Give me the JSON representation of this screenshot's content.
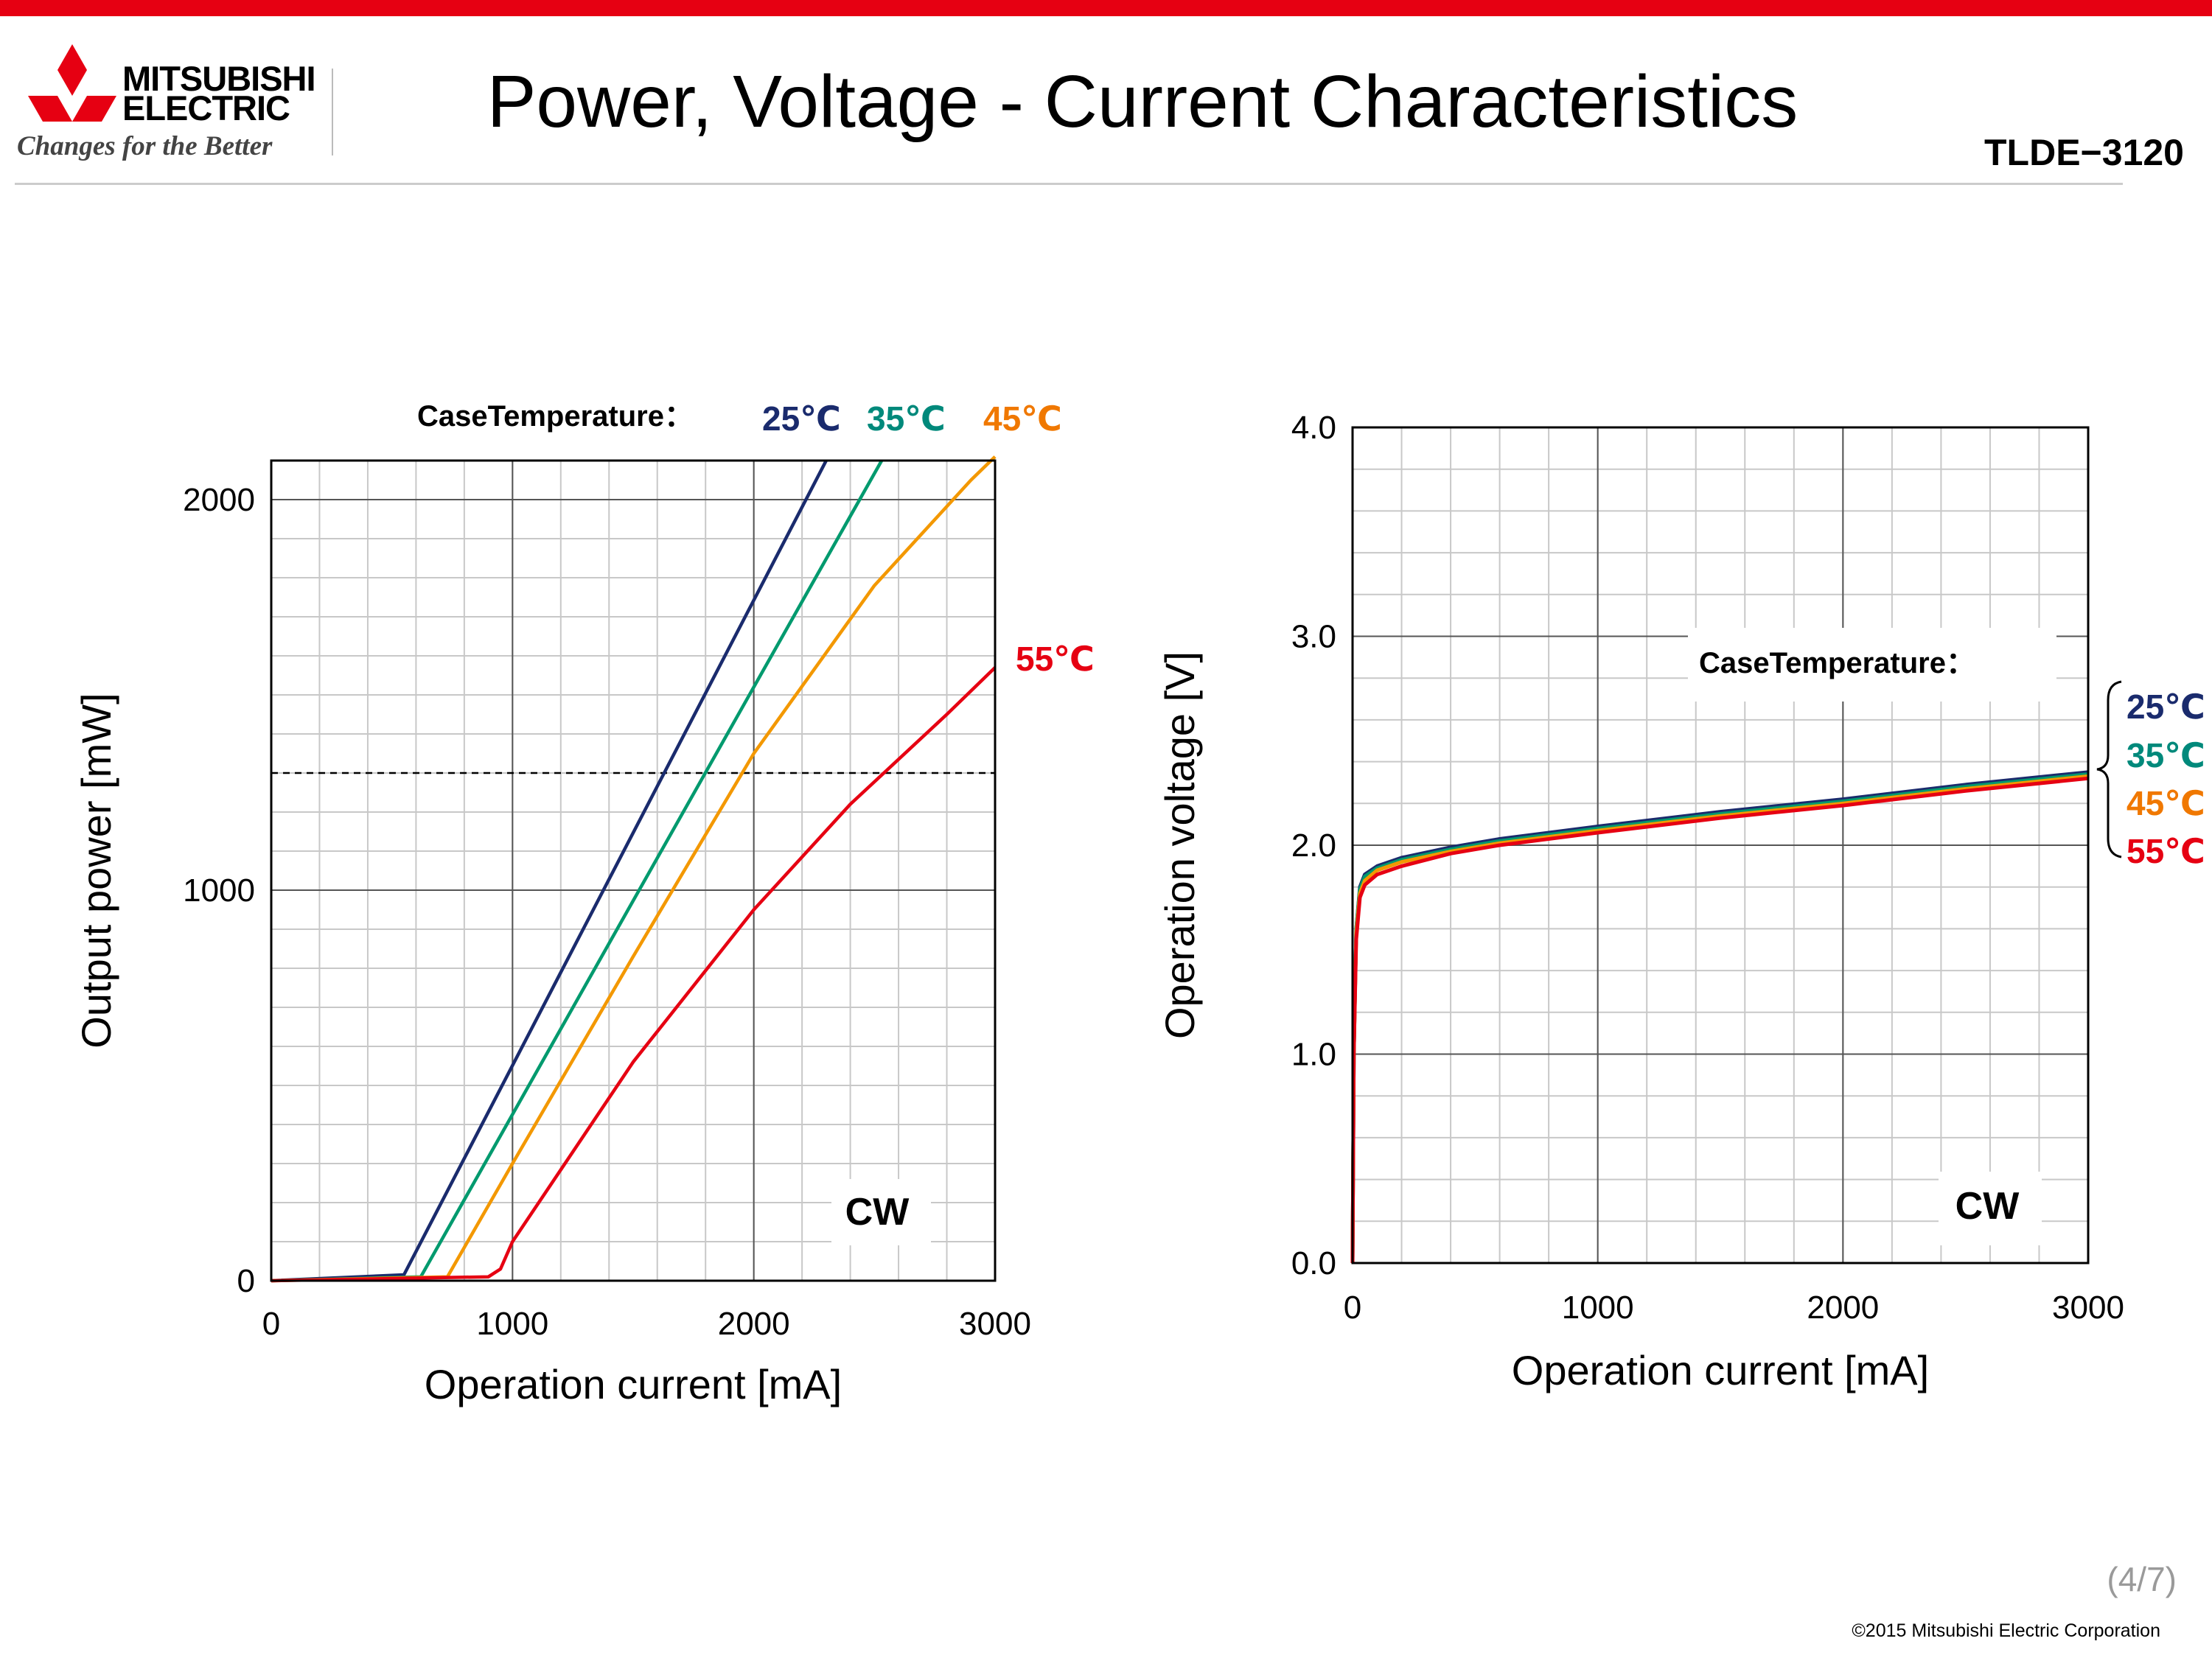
{
  "header": {
    "brand_line1": "MITSUBISHI",
    "brand_line2": "ELECTRIC",
    "tagline": "Changes for the Better",
    "title": "Power, Voltage - Current Characteristics",
    "model": "TLDE−3120"
  },
  "footer": {
    "page": "(4/7)",
    "copyright": "©2015 Mitsubishi Electric Corporation"
  },
  "colors": {
    "accent_bar": "#E60012",
    "t25": "#1A2B6D",
    "t35": "#009A6E",
    "t45": "#F39800",
    "t55": "#E60012",
    "t45_label": "#F07800",
    "t35_label": "#00897B"
  },
  "chart_data": [
    {
      "type": "line",
      "xlabel": "Operation current [mA]",
      "ylabel": "Output power [mW]",
      "xlim": [
        0,
        3000
      ],
      "ylim": [
        0,
        2100
      ],
      "xticks": [
        "0",
        "1000",
        "2000",
        "3000"
      ],
      "yticks": [
        "0",
        "1000",
        "2000"
      ],
      "grid": true,
      "legend_title": "CaseTemperature：",
      "mode_label": "CW",
      "reference_line_y": 1300,
      "series": [
        {
          "name": "25℃",
          "color": "#1A2B6D",
          "x": [
            0,
            550,
            2300
          ],
          "y": [
            0,
            15,
            2100
          ]
        },
        {
          "name": "35℃",
          "color": "#009A6E",
          "x": [
            0,
            620,
            2530
          ],
          "y": [
            0,
            10,
            2100
          ]
        },
        {
          "name": "45℃",
          "color": "#F39800",
          "x": [
            0,
            730,
            1000,
            1500,
            2000,
            2500,
            2900,
            3000
          ],
          "y": [
            0,
            10,
            300,
            830,
            1350,
            1780,
            2050,
            2110
          ]
        },
        {
          "name": "55℃",
          "color": "#E60012",
          "x": [
            0,
            900,
            950,
            1000,
            1500,
            2000,
            2400,
            2800,
            3000
          ],
          "y": [
            0,
            10,
            30,
            100,
            560,
            950,
            1220,
            1450,
            1570
          ]
        }
      ]
    },
    {
      "type": "line",
      "xlabel": "Operation current [mA]",
      "ylabel": "Operation voltage [V]",
      "xlim": [
        0,
        3000
      ],
      "ylim": [
        0.0,
        4.0
      ],
      "xticks": [
        "0",
        "1000",
        "2000",
        "3000"
      ],
      "yticks": [
        "0.0",
        "1.0",
        "2.0",
        "3.0",
        "4.0"
      ],
      "grid": true,
      "legend_title": "CaseTemperature：",
      "mode_label": "CW",
      "series": [
        {
          "name": "25℃",
          "color": "#1A2B6D",
          "x": [
            0,
            5,
            15,
            30,
            50,
            100,
            200,
            400,
            600,
            1000,
            1500,
            2000,
            2500,
            3000
          ],
          "y": [
            0,
            1.0,
            1.6,
            1.8,
            1.86,
            1.9,
            1.94,
            1.99,
            2.03,
            2.09,
            2.16,
            2.22,
            2.29,
            2.35
          ]
        },
        {
          "name": "35℃",
          "color": "#009A6E",
          "x": [
            0,
            5,
            15,
            30,
            50,
            100,
            200,
            400,
            600,
            1000,
            1500,
            2000,
            2500,
            3000
          ],
          "y": [
            0,
            1.0,
            1.6,
            1.79,
            1.85,
            1.89,
            1.93,
            1.98,
            2.02,
            2.08,
            2.15,
            2.21,
            2.28,
            2.34
          ]
        },
        {
          "name": "45℃",
          "color": "#F39800",
          "x": [
            0,
            5,
            15,
            30,
            50,
            100,
            200,
            400,
            600,
            1000,
            1500,
            2000,
            2500,
            3000
          ],
          "y": [
            0,
            1.0,
            1.58,
            1.77,
            1.83,
            1.88,
            1.92,
            1.97,
            2.01,
            2.07,
            2.14,
            2.2,
            2.27,
            2.33
          ]
        },
        {
          "name": "55℃",
          "color": "#E60012",
          "x": [
            0,
            5,
            15,
            30,
            50,
            100,
            200,
            400,
            600,
            1000,
            1500,
            2000,
            2500,
            3000
          ],
          "y": [
            0,
            1.0,
            1.55,
            1.75,
            1.81,
            1.86,
            1.9,
            1.96,
            2.0,
            2.06,
            2.13,
            2.19,
            2.26,
            2.32
          ]
        }
      ]
    }
  ]
}
